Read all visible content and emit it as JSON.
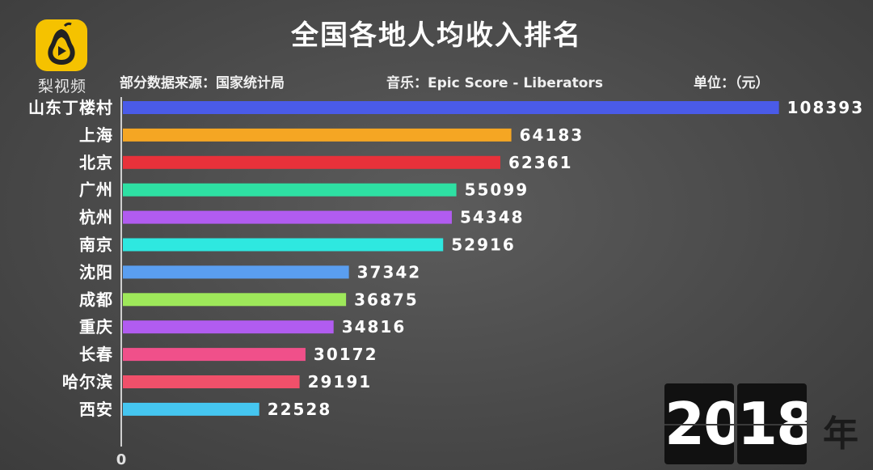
{
  "title": "全国各地人均收入排名",
  "logo": {
    "label": "梨视频",
    "icon": "pear-play-icon",
    "color": "#f5c200"
  },
  "source_text": "部分数据来源：国家统计局",
  "music_text": "音乐：Epic Score - Liberators",
  "unit_text": "单位：（元）",
  "year": {
    "digits": [
      "20",
      "18"
    ],
    "unit": "年"
  },
  "chart_data": {
    "type": "bar",
    "orientation": "horizontal",
    "title": "全国各地人均收入排名",
    "xlabel": "",
    "ylabel": "",
    "xlim": [
      0,
      125000
    ],
    "x_tick_labels": [
      "0"
    ],
    "categories": [
      "山东丁楼村",
      "上海",
      "北京",
      "广州",
      "杭州",
      "南京",
      "沈阳",
      "成都",
      "重庆",
      "长春",
      "哈尔滨",
      "西安"
    ],
    "values": [
      108393,
      64183,
      62361,
      55099,
      54348,
      52916,
      37342,
      36875,
      34816,
      30172,
      29191,
      22528
    ],
    "colors": [
      "#4a5be8",
      "#f5a623",
      "#e8313a",
      "#2ee0a3",
      "#b15cf0",
      "#2ee8e0",
      "#5a9ef0",
      "#9ee85a",
      "#b15cf0",
      "#f0508a",
      "#f0506a",
      "#45c6f0"
    ],
    "grid": false,
    "legend": "none"
  }
}
